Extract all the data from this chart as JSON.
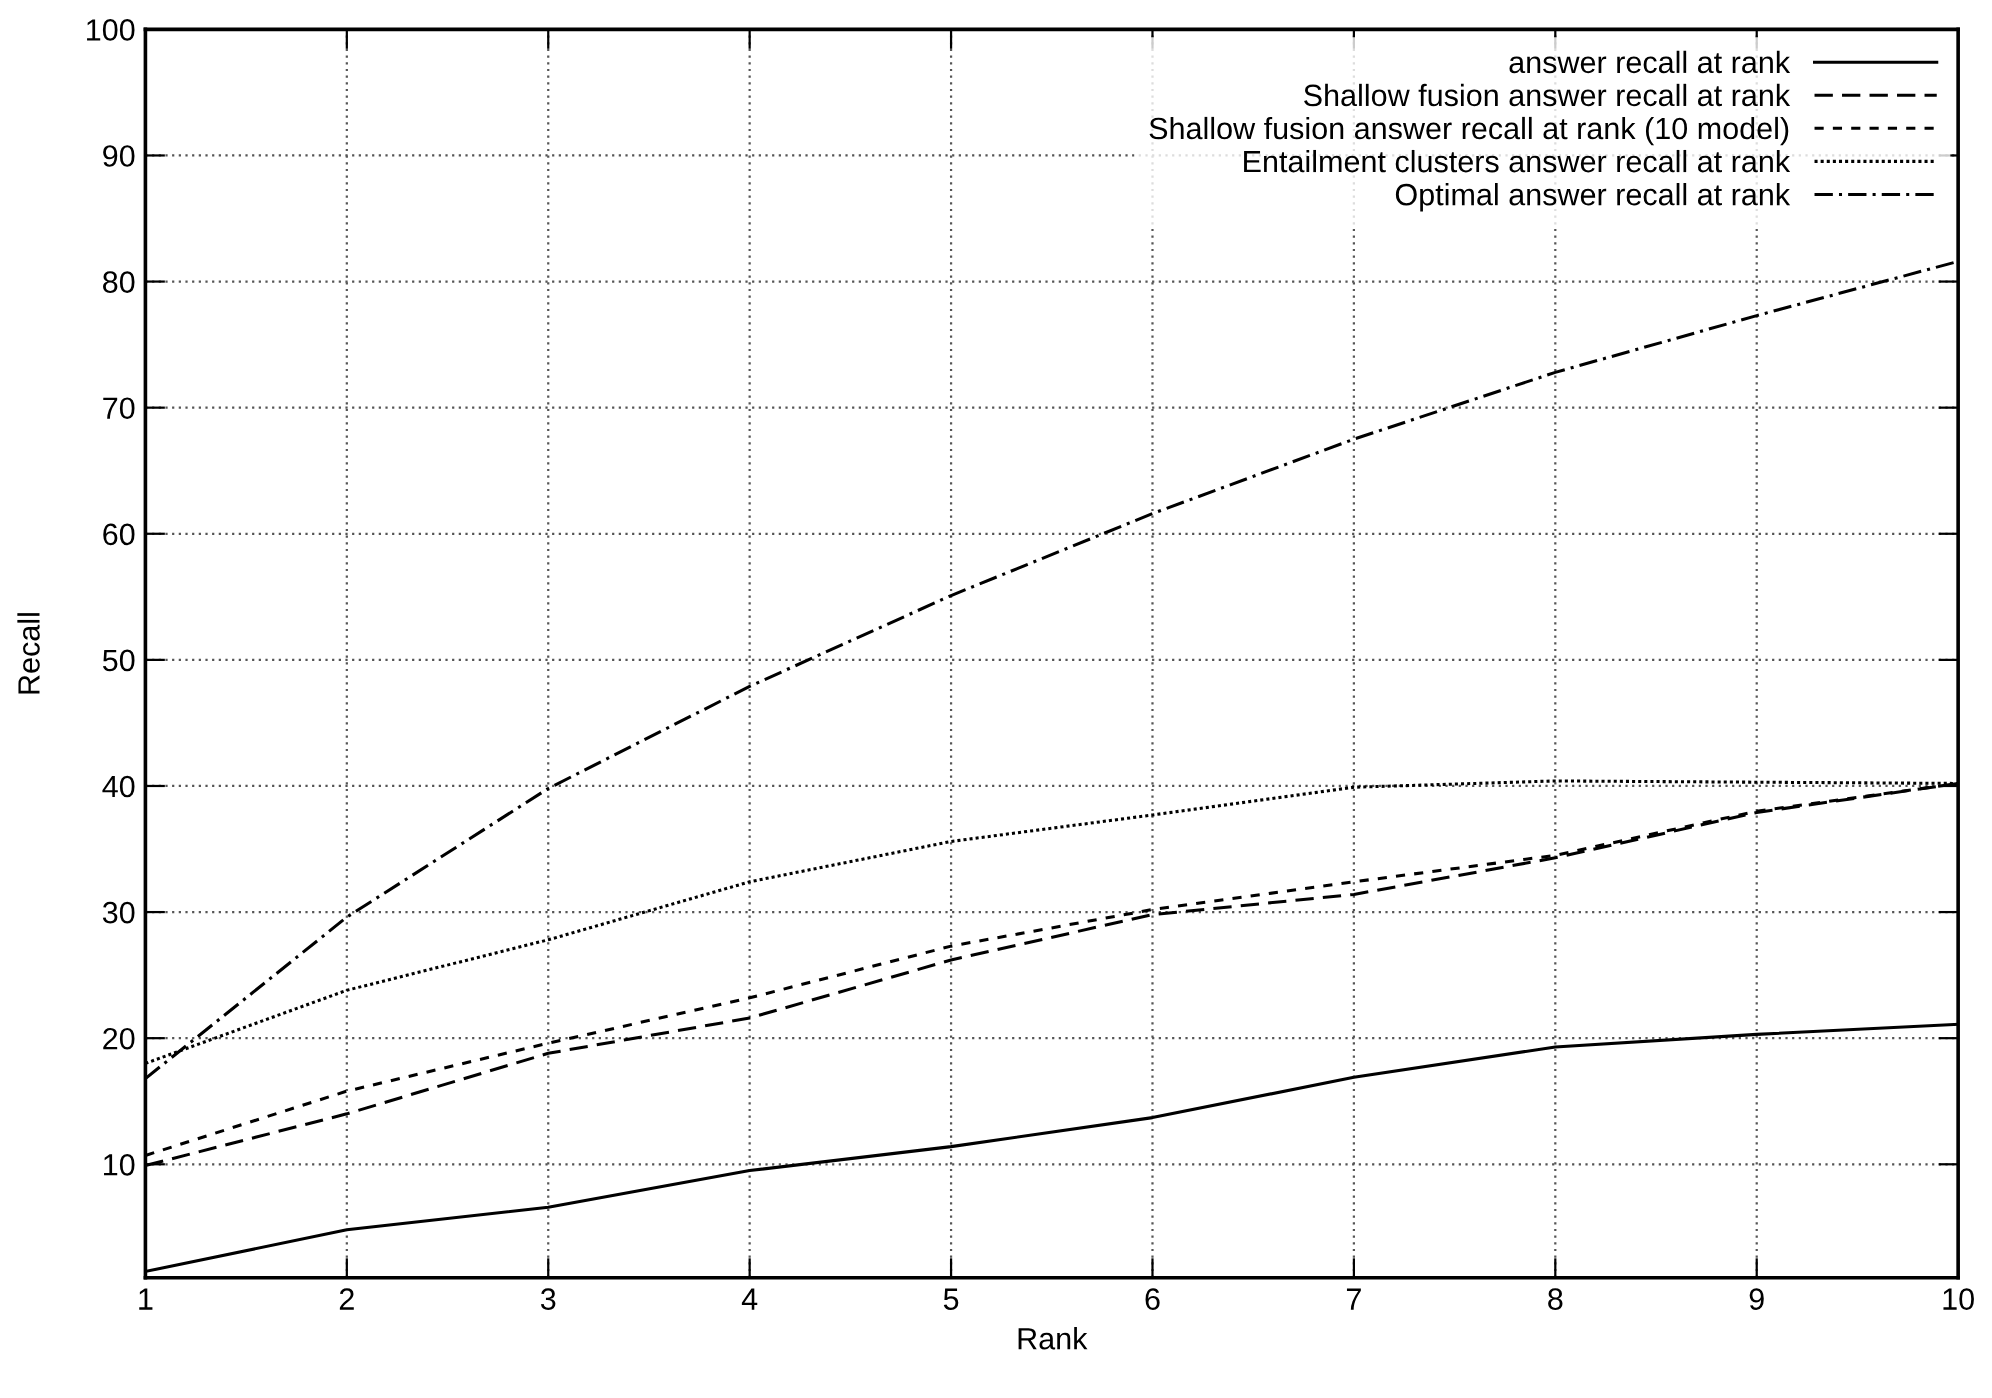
{
  "chart_data": {
    "type": "line",
    "xlabel": "Rank",
    "ylabel": "Recall",
    "x": [
      1,
      2,
      3,
      4,
      5,
      6,
      7,
      8,
      9,
      10
    ],
    "series": [
      {
        "name": "answer recall at rank",
        "color": "#000000",
        "line_style": "solid",
        "values": [
          1.5,
          4.8,
          6.6,
          9.5,
          11.4,
          13.7,
          16.9,
          19.3,
          20.3,
          21.1
        ]
      },
      {
        "name": "Shallow fusion answer recall at rank",
        "color": "#000000",
        "line_style": "dashed",
        "values": [
          9.9,
          14.0,
          18.8,
          21.6,
          26.2,
          29.8,
          31.4,
          34.3,
          37.9,
          40.2
        ]
      },
      {
        "name": "Shallow fusion answer recall at rank (10 model)",
        "color": "#000000",
        "line_style": "short dashed",
        "values": [
          10.7,
          15.8,
          19.6,
          23.2,
          27.3,
          30.2,
          32.4,
          34.5,
          38.0,
          40.2
        ]
      },
      {
        "name": "Entailment clusters answer recall at rank",
        "color": "#000000",
        "line_style": "dotted",
        "values": [
          18.0,
          23.8,
          27.8,
          32.4,
          35.6,
          37.7,
          39.9,
          40.4,
          40.3,
          40.2
        ]
      },
      {
        "name": "Optimal answer recall at rank",
        "color": "#000000",
        "line_style": "dashdot",
        "values": [
          16.8,
          29.6,
          39.8,
          47.9,
          55.1,
          61.6,
          67.5,
          72.8,
          77.3,
          81.6
        ]
      }
    ],
    "xlim": [
      1,
      10
    ],
    "ylim": [
      1,
      100
    ],
    "xticks": [
      1,
      2,
      3,
      4,
      5,
      6,
      7,
      8,
      9,
      10
    ],
    "yticks": [
      10,
      20,
      30,
      40,
      50,
      60,
      70,
      80,
      90,
      100
    ],
    "grid": true,
    "legend": "top right",
    "marker": "none"
  }
}
